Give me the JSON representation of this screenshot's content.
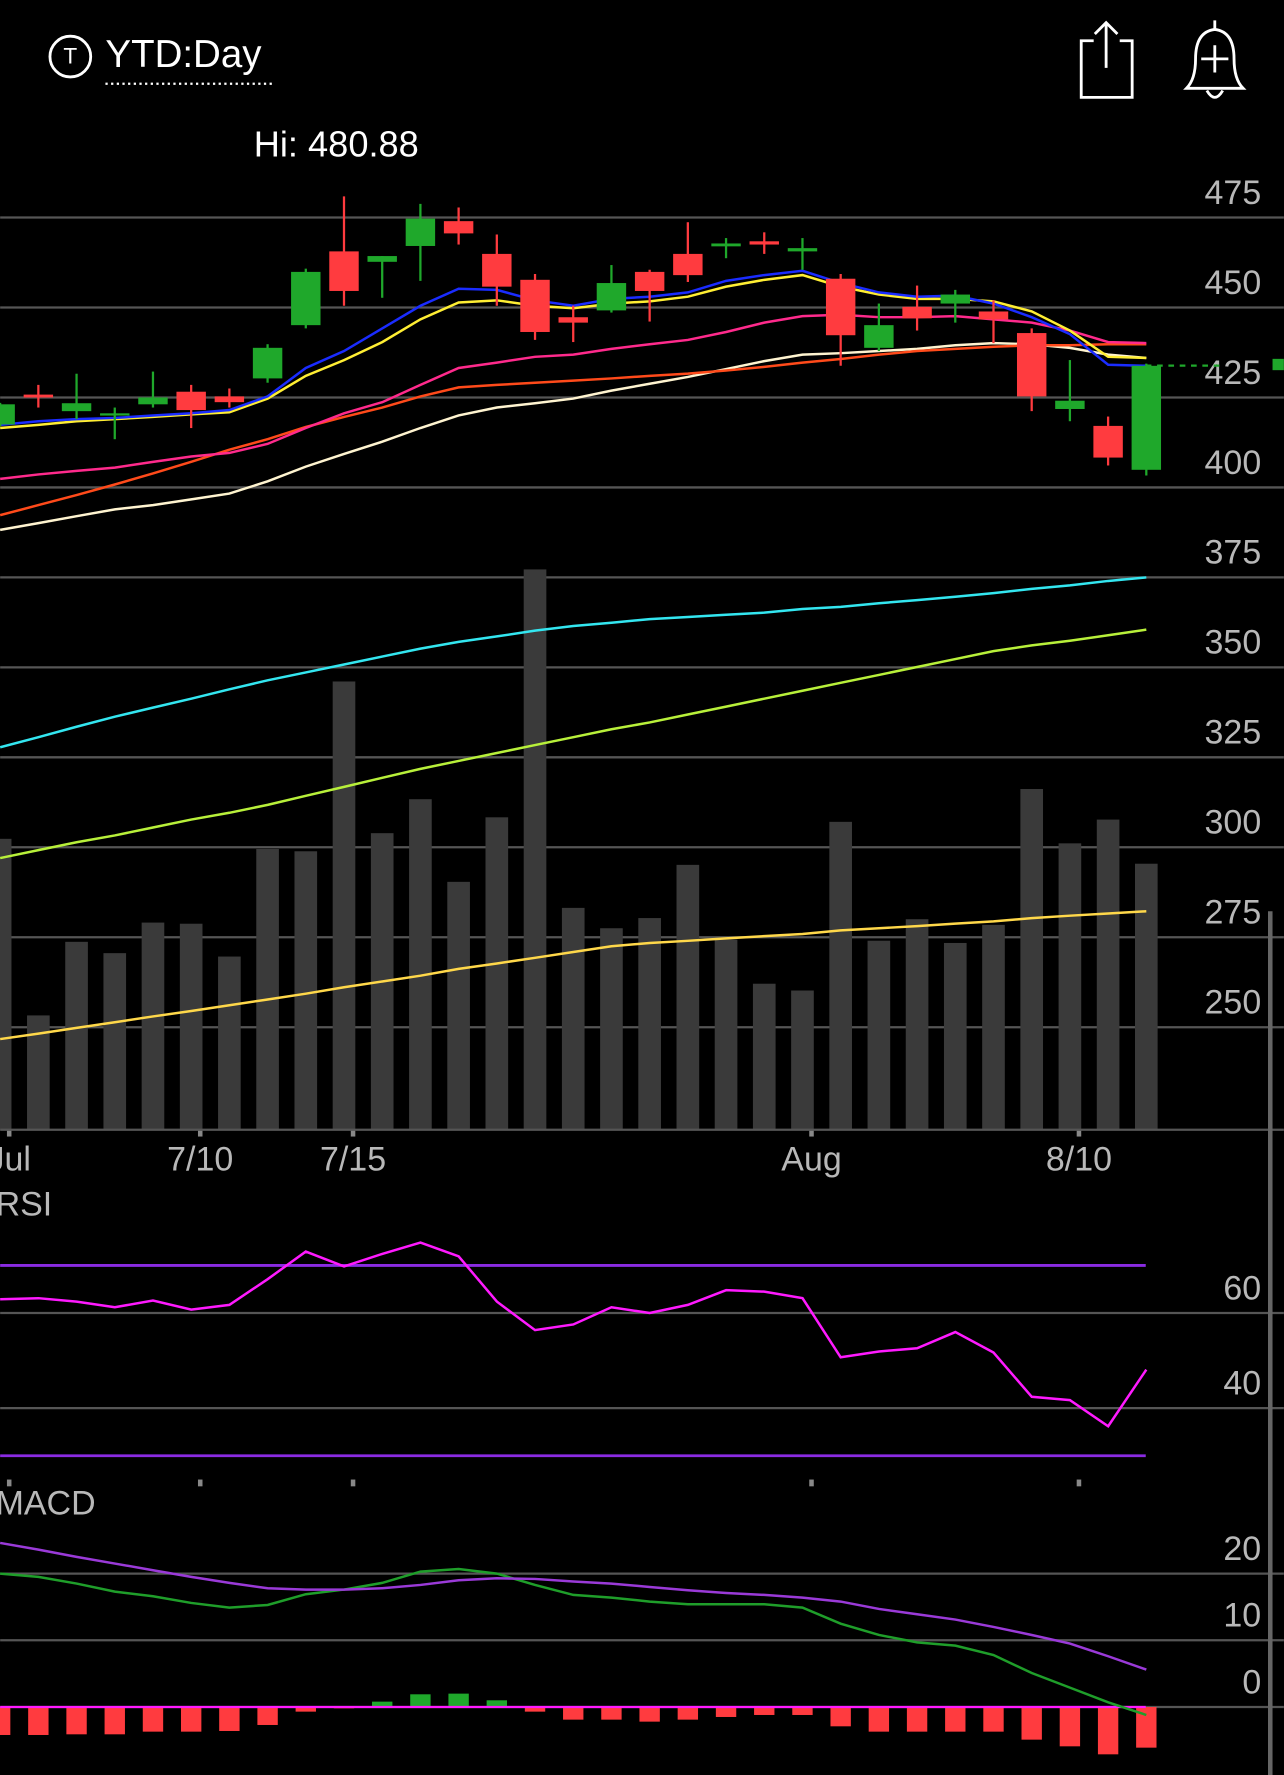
{
  "header": {
    "badge": "T",
    "title": "YTD:Day"
  },
  "chart_data": [
    {
      "type": "candlestick",
      "annotation": "Hi: 480.88",
      "categories": [
        "Jul",
        null,
        null,
        null,
        null,
        "7/10",
        null,
        null,
        null,
        "7/15",
        null,
        null,
        null,
        null,
        null,
        null,
        null,
        null,
        null,
        null,
        null,
        "Aug",
        null,
        null,
        null,
        null,
        null,
        null,
        "8/10",
        null,
        null
      ],
      "open": [
        417.5,
        425.8,
        421.2,
        420.0,
        423.1,
        426.6,
        425.3,
        430.3,
        445.1,
        465.6,
        462.7,
        467.1,
        474.0,
        464.9,
        457.7,
        447.3,
        449.2,
        459.9,
        464.9,
        467.0,
        468.4,
        465.6,
        458.0,
        438.8,
        450.2,
        451.1,
        448.9,
        442.9,
        421.8,
        417.1,
        404.9
      ],
      "high": [
        423.5,
        428.5,
        431.6,
        422.2,
        432.2,
        428.5,
        427.5,
        439.8,
        460.8,
        480.88,
        464.3,
        478.8,
        477.8,
        470.3,
        459.3,
        450.5,
        461.8,
        460.5,
        473.7,
        469.3,
        470.9,
        469.3,
        459.3,
        451.1,
        456.1,
        454.9,
        452.0,
        444.2,
        435.4,
        419.7,
        434.4
      ],
      "low": [
        417.0,
        422.2,
        419.0,
        413.4,
        422.2,
        416.5,
        422.2,
        429.1,
        444.2,
        450.5,
        452.7,
        457.4,
        467.5,
        450.5,
        441.0,
        440.4,
        448.6,
        446.1,
        457.1,
        463.7,
        464.9,
        460.5,
        433.8,
        437.9,
        443.6,
        445.8,
        440.1,
        421.2,
        418.4,
        406.1,
        403.3
      ],
      "close": [
        423.1,
        425.0,
        423.4,
        420.6,
        425.0,
        421.5,
        423.7,
        438.8,
        459.9,
        454.6,
        464.3,
        474.7,
        470.6,
        455.8,
        443.2,
        445.8,
        456.8,
        454.6,
        459.0,
        467.8,
        467.5,
        466.5,
        442.3,
        445.1,
        447.0,
        453.6,
        446.7,
        425.3,
        424.1,
        408.3,
        433.8
      ],
      "up_color": "#1fa82b",
      "down_color": "#ff3b3f",
      "ylim": [
        221.5,
        504
      ],
      "yticks": [
        250,
        275,
        300,
        325,
        350,
        375,
        400,
        425,
        450,
        475
      ],
      "grid": true,
      "series": [
        {
          "color": "#ffd84a",
          "values": [
            246.7,
            248.2,
            249.8,
            251.4,
            253.0,
            254.5,
            256.1,
            257.7,
            259.3,
            261.1,
            262.7,
            264.3,
            266.2,
            267.7,
            269.3,
            270.9,
            272.5,
            273.4,
            274.0,
            274.7,
            275.3,
            275.9,
            276.9,
            277.5,
            278.1,
            278.8,
            279.4,
            280.3,
            281.0,
            281.6,
            282.2
          ]
        },
        {
          "color": "#b8f03a",
          "values": [
            297.0,
            299.2,
            301.4,
            303.3,
            305.5,
            307.7,
            309.6,
            311.8,
            314.3,
            316.8,
            319.3,
            321.8,
            324.0,
            326.2,
            328.4,
            330.6,
            332.8,
            334.7,
            336.9,
            339.1,
            341.3,
            343.5,
            345.7,
            347.9,
            350.1,
            352.3,
            354.5,
            356.1,
            357.4,
            358.9,
            360.5
          ]
        },
        {
          "color": "#33e6f0",
          "values": [
            327.8,
            330.6,
            333.5,
            336.3,
            338.8,
            341.3,
            343.9,
            346.4,
            348.6,
            350.8,
            353.0,
            355.2,
            357.1,
            358.6,
            360.2,
            361.5,
            362.4,
            363.4,
            364.0,
            364.6,
            365.2,
            366.2,
            366.8,
            367.8,
            368.7,
            369.6,
            370.6,
            371.8,
            372.8,
            374.0,
            375.0
          ]
        },
        {
          "color": "#fff4d0",
          "values": [
            388.2,
            390.1,
            392.0,
            393.9,
            395.1,
            396.7,
            398.3,
            401.7,
            405.8,
            409.3,
            412.7,
            416.5,
            420.0,
            422.2,
            423.4,
            424.7,
            426.9,
            428.8,
            430.7,
            432.9,
            435.1,
            436.9,
            437.3,
            437.9,
            438.5,
            439.5,
            440.1,
            439.8,
            438.8,
            436.9,
            436.0
          ]
        },
        {
          "color": "#ff4a1a",
          "values": [
            392.3,
            395.1,
            397.9,
            400.8,
            403.9,
            407.1,
            410.5,
            413.4,
            416.8,
            419.6,
            422.2,
            425.3,
            427.8,
            428.5,
            429.1,
            429.7,
            430.3,
            431.0,
            431.6,
            432.5,
            433.5,
            434.7,
            435.7,
            436.9,
            437.9,
            438.5,
            439.1,
            439.5,
            439.5,
            439.8,
            439.8
          ]
        },
        {
          "color": "#ff2a8c",
          "values": [
            402.4,
            403.6,
            404.6,
            405.5,
            407.1,
            408.6,
            409.6,
            412.1,
            416.5,
            420.6,
            423.7,
            428.5,
            433.2,
            434.7,
            436.3,
            436.9,
            438.5,
            439.8,
            441.0,
            443.2,
            445.8,
            447.6,
            448.0,
            447.3,
            447.3,
            447.6,
            446.7,
            445.8,
            443.6,
            440.4,
            440.1
          ]
        },
        {
          "color": "#ffee33",
          "values": [
            416.5,
            417.4,
            418.4,
            419.0,
            419.6,
            420.3,
            420.9,
            424.7,
            431.0,
            435.4,
            440.4,
            446.7,
            451.4,
            452.0,
            450.5,
            449.8,
            451.1,
            451.7,
            453.0,
            455.8,
            457.7,
            459.0,
            455.8,
            453.6,
            452.4,
            452.4,
            451.7,
            448.9,
            443.6,
            436.3,
            436.0
          ]
        },
        {
          "color": "#1a2cff",
          "values": [
            417.4,
            418.4,
            419.0,
            419.3,
            420.0,
            420.6,
            421.5,
            425.3,
            433.2,
            437.9,
            444.2,
            450.5,
            455.2,
            454.9,
            452.0,
            450.5,
            452.4,
            453.0,
            454.2,
            457.4,
            459.0,
            460.2,
            456.8,
            454.2,
            453.0,
            453.3,
            451.1,
            447.3,
            442.6,
            434.1,
            433.8
          ]
        }
      ],
      "volume": {
        "color": "#3a3a3a",
        "vlim": [
          0,
          500
        ],
        "values": [
          257,
          101,
          166,
          156,
          183,
          182,
          153,
          248,
          246,
          396,
          262,
          292,
          219,
          276,
          495,
          196,
          178,
          187,
          234,
          168,
          129,
          123,
          272,
          167,
          186,
          165,
          181,
          301,
          253,
          274,
          235
        ]
      }
    },
    {
      "type": "line",
      "title": "RSI",
      "ylim": [
        25,
        79
      ],
      "yticks": [
        40,
        60
      ],
      "grid": true,
      "levels": [
        30,
        70
      ],
      "level_color": "#8a2be2",
      "series": [
        {
          "color": "#ff1aff",
          "values": [
            62.9,
            63.1,
            62.4,
            61.2,
            62.6,
            60.7,
            61.7,
            67.1,
            72.9,
            69.8,
            72.4,
            74.8,
            71.9,
            62.4,
            56.4,
            57.6,
            61.2,
            60.0,
            61.7,
            64.8,
            64.5,
            63.1,
            50.7,
            51.9,
            52.6,
            56.0,
            51.7,
            42.4,
            41.7,
            36.2,
            48.1
          ]
        }
      ]
    },
    {
      "type": "macd",
      "title": "MACD",
      "ylim": [
        -10.2,
        28.5
      ],
      "yticks": [
        0,
        10,
        20
      ],
      "grid": true,
      "series": [
        {
          "color": "#1f9e2a",
          "values": [
            20.0,
            19.5,
            18.5,
            17.3,
            16.6,
            15.6,
            14.9,
            15.3,
            16.9,
            17.6,
            18.6,
            20.3,
            20.7,
            20.0,
            18.3,
            16.8,
            16.4,
            15.8,
            15.4,
            15.4,
            15.4,
            14.9,
            12.5,
            10.8,
            9.7,
            9.2,
            7.8,
            5.1,
            2.9,
            0.7,
            -1.2
          ]
        },
        {
          "color": "#9a3ad8",
          "values": [
            24.6,
            23.6,
            22.5,
            21.5,
            20.5,
            19.5,
            18.6,
            17.8,
            17.6,
            17.6,
            17.8,
            18.3,
            19.0,
            19.3,
            19.2,
            18.8,
            18.5,
            18.0,
            17.5,
            17.1,
            16.8,
            16.4,
            15.8,
            14.7,
            13.9,
            13.1,
            12.0,
            10.8,
            9.5,
            7.6,
            5.6
          ]
        }
      ],
      "histogram": {
        "up_color": "#1fa82b",
        "down_color": "#ff3b3f",
        "zero_color": "#ff1aff",
        "values": [
          -4.2,
          -4.2,
          -4.1,
          -4.1,
          -3.7,
          -3.7,
          -3.6,
          -2.7,
          -0.7,
          -0.2,
          0.8,
          1.9,
          2.0,
          1.0,
          -0.7,
          -1.9,
          -1.9,
          -2.2,
          -1.9,
          -1.5,
          -1.2,
          -1.2,
          -2.9,
          -3.7,
          -3.7,
          -3.7,
          -3.7,
          -4.9,
          -5.9,
          -7.1,
          -6.1
        ]
      }
    }
  ]
}
